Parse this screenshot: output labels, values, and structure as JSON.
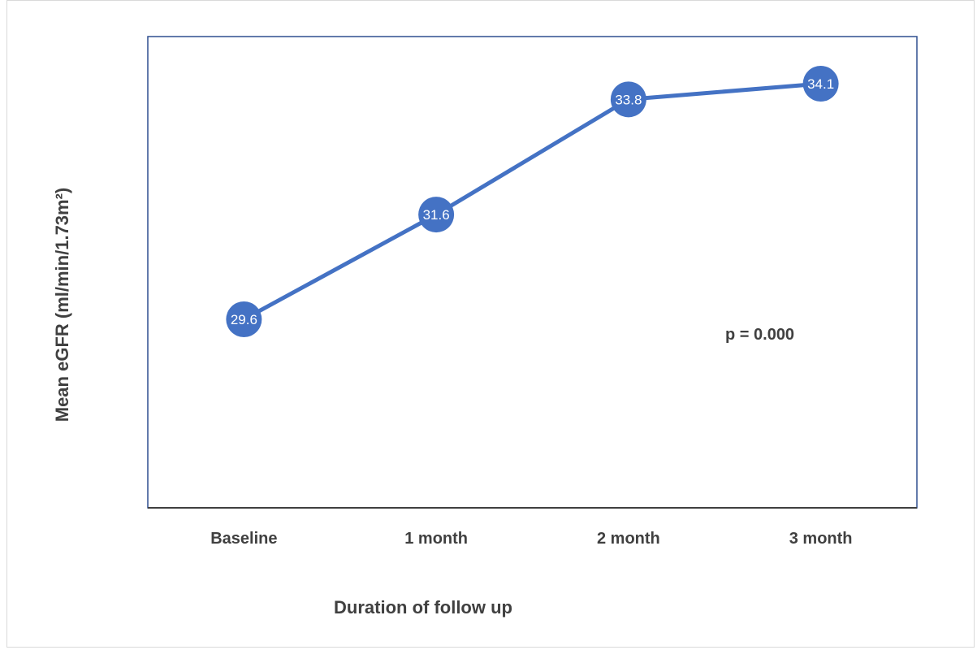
{
  "chart_data": {
    "type": "line",
    "categories": [
      "Baseline",
      "1 month",
      "2 month",
      "3 month"
    ],
    "series": [
      {
        "values": [
          29.6,
          31.6,
          33.8,
          34.1
        ],
        "color": "#4472c4"
      }
    ],
    "data_labels": [
      "29.6",
      "31.6",
      "33.8",
      "34.1"
    ],
    "title": "",
    "xlabel": "Duration of follow up",
    "ylabel": "Mean eGFR (ml/min/1.73m²)",
    "ylim": [
      26,
      35
    ],
    "grid": false,
    "legend": "none",
    "annotation": "p = 0.000",
    "colors": {
      "line": "#4472c4",
      "plot_border": "#2f4f8f",
      "axis": "#404040"
    }
  }
}
